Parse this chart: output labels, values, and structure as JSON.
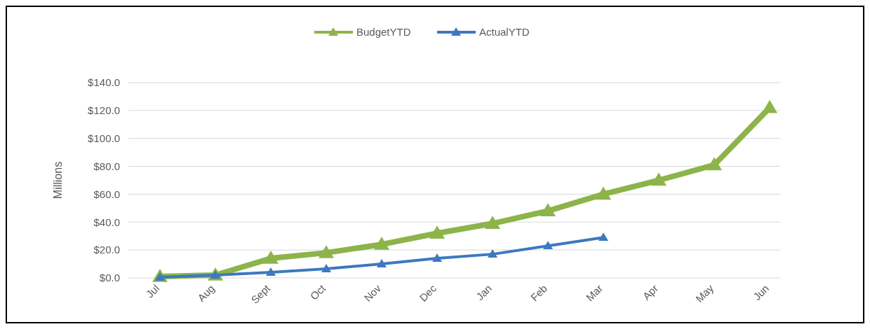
{
  "chart_data": {
    "type": "line",
    "ylabel": "Millions",
    "categories": [
      "Jul",
      "Aug",
      "Sept",
      "Oct",
      "Nov",
      "Dec",
      "Jan",
      "Feb",
      "Mar",
      "Apr",
      "May",
      "Jun"
    ],
    "series": [
      {
        "name": "BudgetYTD",
        "color": "#8cb44a",
        "values": [
          1,
          2,
          14,
          18,
          24,
          32,
          39,
          48,
          60,
          70,
          81,
          122
        ]
      },
      {
        "name": "ActualYTD",
        "color": "#3d78c0",
        "values": [
          0.5,
          2,
          4,
          6.5,
          10,
          14,
          17,
          23,
          29,
          null,
          null,
          null
        ]
      }
    ],
    "ylim": [
      0,
      140
    ],
    "yticks": [
      {
        "value": 0,
        "label": "$0.0"
      },
      {
        "value": 20,
        "label": "$20.0"
      },
      {
        "value": 40,
        "label": "$40.0"
      },
      {
        "value": 60,
        "label": "$60.0"
      },
      {
        "value": 80,
        "label": "$80.0"
      },
      {
        "value": 100,
        "label": "$100.0"
      },
      {
        "value": 120,
        "label": "$120.0"
      },
      {
        "value": 140,
        "label": "$140.0"
      }
    ],
    "grid": "y",
    "legend": "top",
    "marker": "triangle",
    "line_style": "solid"
  }
}
